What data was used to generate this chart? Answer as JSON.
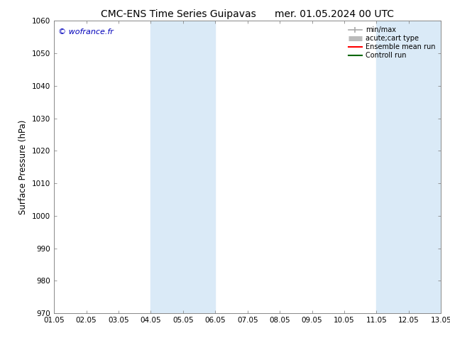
{
  "title_left": "CMC-ENS Time Series Guipavas",
  "title_right": "mer. 01.05.2024 00 UTC",
  "ylabel": "Surface Pressure (hPa)",
  "ylim": [
    970,
    1060
  ],
  "yticks": [
    970,
    980,
    990,
    1000,
    1010,
    1020,
    1030,
    1040,
    1050,
    1060
  ],
  "x_tick_labels": [
    "01.05",
    "02.05",
    "03.05",
    "04.05",
    "05.05",
    "06.05",
    "07.05",
    "08.05",
    "09.05",
    "10.05",
    "11.05",
    "12.05",
    "13.05"
  ],
  "x_tick_positions": [
    0,
    1,
    2,
    3,
    4,
    5,
    6,
    7,
    8,
    9,
    10,
    11,
    12
  ],
  "shaded_bands": [
    {
      "x_start": 3,
      "x_end": 5,
      "color": "#daeaf7"
    },
    {
      "x_start": 10,
      "x_end": 12,
      "color": "#daeaf7"
    }
  ],
  "copyright_text": "© wofrance.fr",
  "copyright_color": "#0000bb",
  "legend_entries": [
    {
      "label": "min/max",
      "color": "#aaaaaa",
      "lw": 1.2
    },
    {
      "label": "acute;cart type",
      "color": "#bbbbbb",
      "lw": 5
    },
    {
      "label": "Ensemble mean run",
      "color": "#ff0000",
      "lw": 1.5
    },
    {
      "label": "Controll run",
      "color": "#006600",
      "lw": 1.5
    }
  ],
  "bg_color": "#ffffff",
  "plot_bg_color": "#ffffff",
  "border_color": "#888888",
  "figsize": [
    6.34,
    4.9
  ],
  "dpi": 100
}
